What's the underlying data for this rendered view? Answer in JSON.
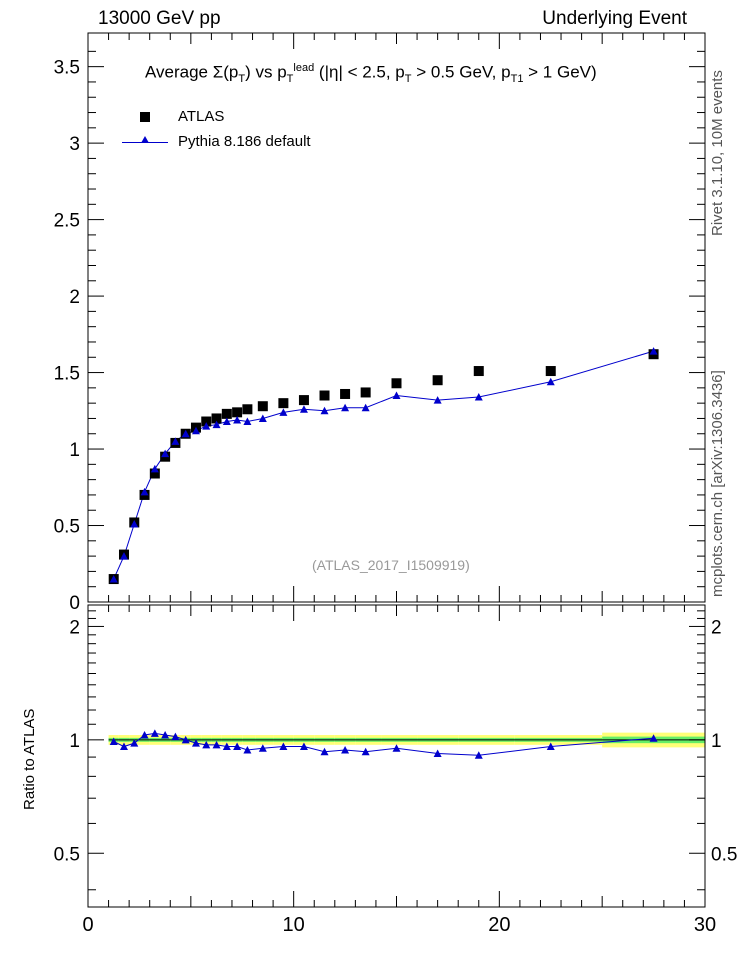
{
  "header": {
    "left": "13000 GeV pp",
    "right": "Underlying Event"
  },
  "side_text": {
    "top": "Rivet 3.1.10, 10M events",
    "bottom": "mcplots.cern.ch [arXiv:1306.3436]"
  },
  "watermark": "(ATLAS_2017_I1509919)",
  "title": {
    "a": "Average Σ(p",
    "b": "T",
    "c": ") vs p",
    "d": "T",
    "e": "lead",
    "f": " (|η| < 2.5, p",
    "g": "T",
    "h": " > 0.5 GeV, p",
    "i": "T1",
    "j": " > 1 GeV)"
  },
  "ratio_ylabel": "Ratio to ATLAS",
  "colors": {
    "data": "#000000",
    "mc": "#0000cc",
    "band_inner": "#66ee66",
    "band_outer": "#ffff77"
  },
  "chart_data": {
    "type": "scatter",
    "xlim": [
      0,
      30
    ],
    "main": {
      "ylim": [
        0,
        3.72
      ],
      "yticks": [
        0,
        0.5,
        1,
        1.5,
        2,
        2.5,
        3,
        3.5
      ],
      "ytick_labels": [
        "0",
        "0.5",
        "1",
        "1.5",
        "2",
        "2.5",
        "3",
        "3.5"
      ]
    },
    "ratio": {
      "ylim": [
        0.36,
        2.28
      ],
      "yticks": [
        0.5,
        1,
        2
      ],
      "ytick_labels": [
        "0.5",
        "1",
        "2"
      ]
    },
    "xticks": [
      0,
      10,
      20,
      30
    ],
    "xtick_labels": [
      "0",
      "10",
      "20",
      "30"
    ],
    "x": [
      1.25,
      1.75,
      2.25,
      2.75,
      3.25,
      3.75,
      4.25,
      4.75,
      5.25,
      5.75,
      6.25,
      6.75,
      7.25,
      7.75,
      8.5,
      9.5,
      10.5,
      11.5,
      12.5,
      13.5,
      15,
      17,
      19,
      22.5,
      27.5
    ],
    "series": [
      {
        "name": "ATLAS",
        "values": [
          0.15,
          0.31,
          0.52,
          0.7,
          0.84,
          0.95,
          1.04,
          1.1,
          1.14,
          1.18,
          1.2,
          1.23,
          1.24,
          1.26,
          1.28,
          1.3,
          1.32,
          1.35,
          1.36,
          1.37,
          1.43,
          1.45,
          1.51,
          1.51,
          1.62
        ]
      },
      {
        "name": "Pythia 8.186 default",
        "values": [
          0.15,
          0.3,
          0.51,
          0.72,
          0.87,
          0.97,
          1.05,
          1.1,
          1.12,
          1.15,
          1.16,
          1.18,
          1.19,
          1.18,
          1.2,
          1.24,
          1.26,
          1.25,
          1.27,
          1.27,
          1.35,
          1.32,
          1.34,
          1.44,
          1.64
        ],
        "ratio": [
          0.99,
          0.96,
          0.98,
          1.03,
          1.04,
          1.03,
          1.02,
          1.0,
          0.98,
          0.97,
          0.97,
          0.96,
          0.96,
          0.94,
          0.95,
          0.96,
          0.96,
          0.93,
          0.94,
          0.93,
          0.95,
          0.92,
          0.91,
          0.96,
          1.01
        ]
      }
    ]
  }
}
